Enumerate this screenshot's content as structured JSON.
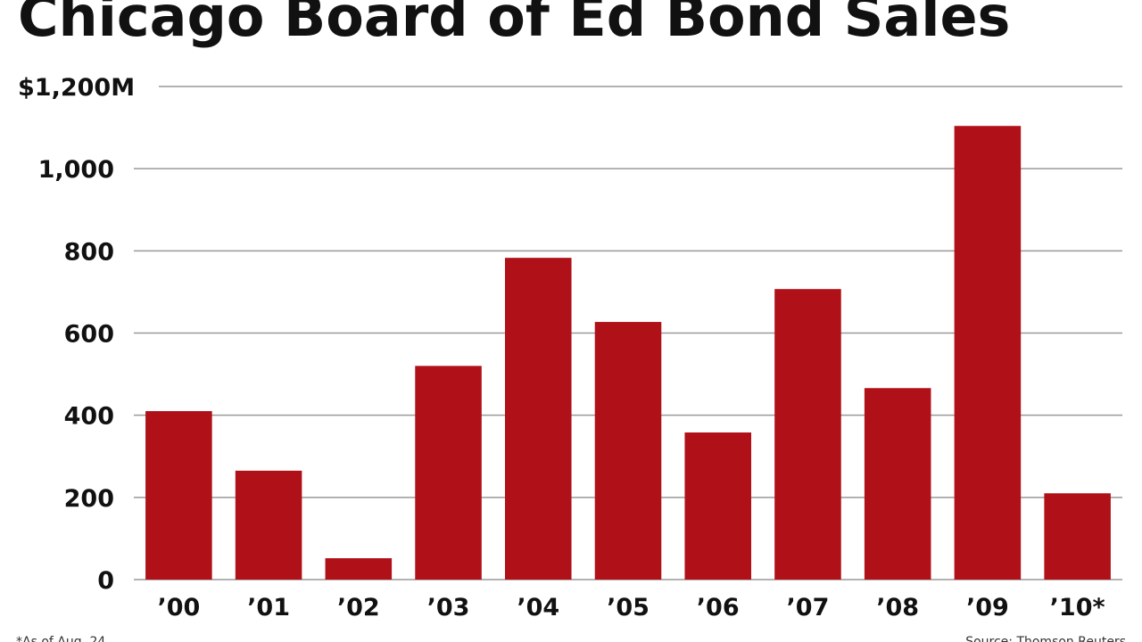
{
  "chart_data": {
    "type": "bar",
    "title": "Chicago Board of Ed Bond Sales",
    "categories": [
      "’00",
      "’01",
      "’02",
      "’03",
      "’04",
      "’05",
      "’06",
      "’07",
      "’08",
      "’09",
      "’10*"
    ],
    "values": [
      410,
      265,
      52,
      520,
      783,
      627,
      358,
      707,
      466,
      1104,
      210
    ],
    "color": "#b01018",
    "ylim": [
      0,
      1200
    ],
    "yticks": [
      0,
      200,
      400,
      600,
      800,
      {
        "value": 1000,
        "label": "1,000"
      },
      {
        "value": 1200,
        "label": "$1,200M"
      }
    ],
    "grid": true,
    "footnote": "*As of Aug. 24",
    "source": "Source: Thomson Reuters"
  }
}
